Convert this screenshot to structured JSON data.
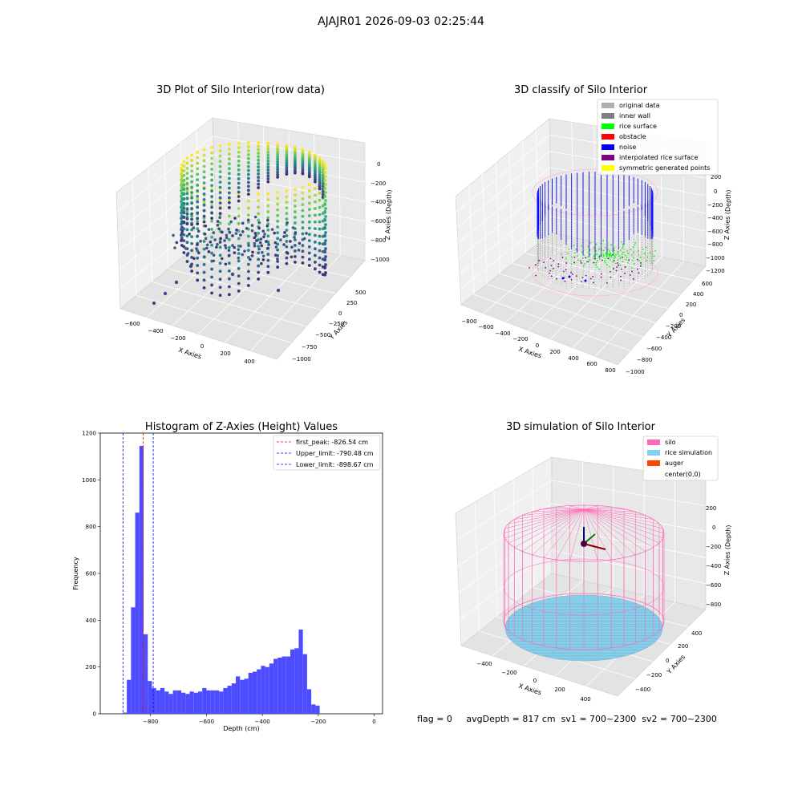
{
  "figure": {
    "suptitle": "AJAJR01 2026-09-03 02:25:44",
    "status_text": "flag = 0     avgDepth = 817 cm  sv1 = 700~2300  sv2 = 700~2300"
  },
  "colors": {
    "hist_bar": "#4d4dff",
    "peak_line": "#ff0000",
    "limit_line": "#0000ff",
    "silo": "#ff69b4",
    "rice": "#87ceeb",
    "auger": "#ff4500",
    "noise": "#0000ff",
    "rice_surface": "#00ff00",
    "obstacle": "#ff0000",
    "inner_wall": "#808080",
    "original": "#b0b0b0",
    "interpolated": "#800080",
    "symmetric": "#ffff00"
  },
  "chart_data": [
    {
      "type": "scatter",
      "subtype": "3d",
      "title": "3D Plot of Silo Interior(row data)",
      "xlabel": "X Axies",
      "ylabel": "Y Axies",
      "zlabel": "Z Axies (Depth)",
      "x_ticks": [
        "−600",
        "−400",
        "−200",
        "0",
        "200",
        "400"
      ],
      "y_ticks": [
        "500",
        "250",
        "0",
        "−250",
        "−500",
        "−750",
        "−1000"
      ],
      "z_ticks": [
        "0",
        "−200",
        "−400",
        "−600",
        "−800",
        "−1000"
      ],
      "colormap": "viridis"
    },
    {
      "type": "scatter",
      "subtype": "3d",
      "title": "3D classify of Silo Interior",
      "xlabel": "X Axies",
      "ylabel": "Y Axies",
      "zlabel": "Z Axies (Depth)",
      "x_ticks": [
        "−800",
        "−600",
        "−400",
        "−200",
        "0",
        "200",
        "400",
        "600",
        "800"
      ],
      "y_ticks": [
        "600",
        "400",
        "200",
        "0",
        "−200",
        "−400",
        "−600",
        "−800",
        "−1000"
      ],
      "z_ticks": [
        "200",
        "0",
        "−200",
        "−400",
        "−600",
        "−800",
        "−1000",
        "−1200"
      ],
      "legend_position": "top-right",
      "legend": [
        {
          "label": "original data",
          "color": "#b0b0b0"
        },
        {
          "label": "inner wall",
          "color": "#808080"
        },
        {
          "label": "rice surface",
          "color": "#00ff00"
        },
        {
          "label": "obstacle",
          "color": "#ff0000"
        },
        {
          "label": "noise",
          "color": "#0000ff"
        },
        {
          "label": "interpolated rice surface",
          "color": "#800080"
        },
        {
          "label": "symmetric generated points",
          "color": "#ffff00"
        }
      ]
    },
    {
      "type": "bar",
      "subtype": "histogram",
      "title": "Histogram of Z-Axies (Height) Values",
      "xlabel": "Depth (cm)",
      "ylabel": "Frequency",
      "xlim": [
        -980,
        30
      ],
      "ylim": [
        0,
        1200
      ],
      "x_ticks": [
        -800,
        -600,
        -400,
        -200,
        0
      ],
      "y_ticks": [
        0,
        200,
        400,
        600,
        800,
        1000,
        1200
      ],
      "bin_start": -900,
      "bin_width": 15,
      "values": [
        5,
        145,
        455,
        860,
        1145,
        340,
        140,
        110,
        100,
        110,
        95,
        85,
        100,
        100,
        90,
        85,
        95,
        90,
        95,
        110,
        100,
        100,
        100,
        95,
        110,
        120,
        130,
        160,
        145,
        150,
        175,
        180,
        190,
        205,
        200,
        215,
        235,
        240,
        245,
        245,
        275,
        280,
        360,
        255,
        105,
        40,
        35
      ],
      "vlines": [
        {
          "label": "first_peak: -826.54 cm",
          "x": -826.54,
          "color": "#ff0000"
        },
        {
          "label": "Upper_limit: -790.48 cm",
          "x": -790.48,
          "color": "#0000ff"
        },
        {
          "label": "Lower_limit: -898.67 cm",
          "x": -898.67,
          "color": "#0000ff"
        }
      ],
      "legend_position": "top-right"
    },
    {
      "type": "other",
      "subtype": "3d-wireframe",
      "title": "3D simulation of Silo Interior",
      "xlabel": "X Axies",
      "ylabel": "Y Axies",
      "zlabel": "Z Axies (Depth)",
      "x_ticks": [
        "−400",
        "−200",
        "0",
        "200",
        "400"
      ],
      "y_ticks": [
        "400",
        "200",
        "0",
        "−200",
        "−400"
      ],
      "z_ticks": [
        "200",
        "0",
        "−200",
        "−400",
        "−600",
        "−800"
      ],
      "legend_position": "top-right",
      "legend": [
        {
          "label": "silo",
          "color": "#ff69b4"
        },
        {
          "label": "rice simulation",
          "color": "#87ceeb"
        },
        {
          "label": "auger",
          "color": "#ff4500"
        },
        {
          "label": "center(0,0)",
          "color": "#ffffff"
        }
      ]
    }
  ]
}
